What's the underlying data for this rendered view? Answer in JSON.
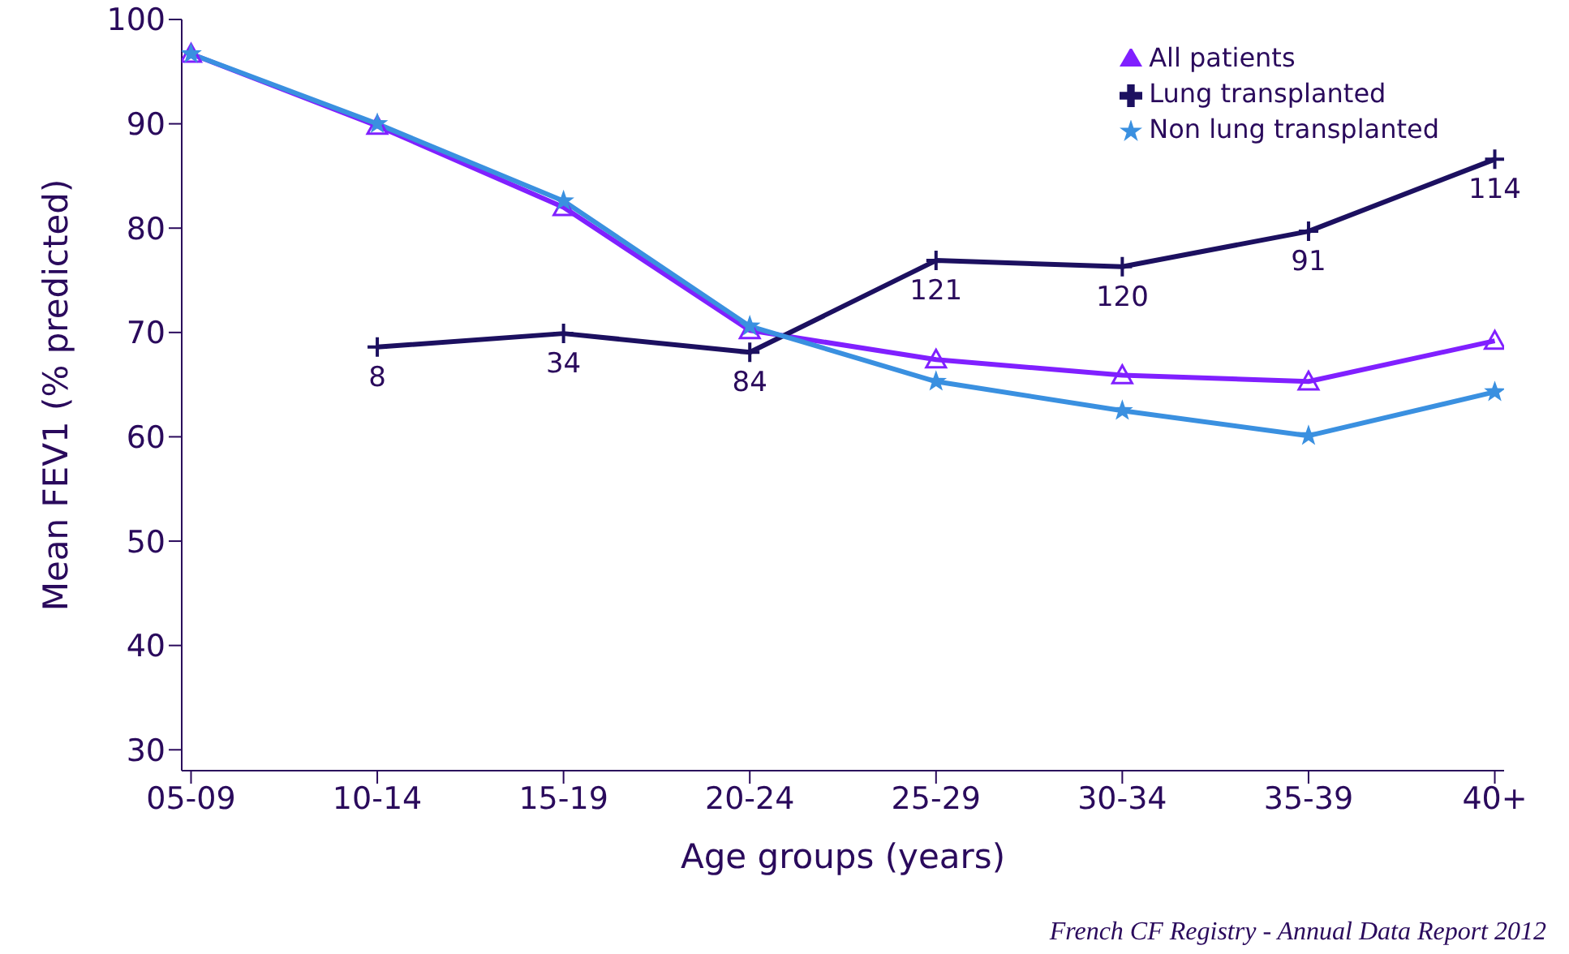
{
  "chart_data": {
    "type": "line",
    "xlabel": "Age groups (years)",
    "ylabel": "Mean FEV1 (% predicted)",
    "categories": [
      "05-09",
      "10-14",
      "15-19",
      "20-24",
      "25-29",
      "30-34",
      "35-39",
      "40+"
    ],
    "series": [
      {
        "name": "All patients",
        "color": "#8020ff",
        "marker": "triangle",
        "values": [
          96.7,
          89.8,
          82.0,
          70.2,
          67.4,
          65.9,
          65.3,
          69.2
        ]
      },
      {
        "name": "Lung transplanted",
        "color": "#1c1060",
        "marker": "cross",
        "values": [
          null,
          68.6,
          69.9,
          68.1,
          76.9,
          76.3,
          79.7,
          86.6
        ]
      },
      {
        "name": "Non lung transplanted",
        "color": "#3a90e0",
        "marker": "star",
        "values": [
          96.7,
          90.0,
          82.6,
          70.6,
          65.3,
          62.5,
          60.1,
          64.3
        ]
      }
    ],
    "ylim": [
      28,
      100
    ],
    "yticks": [
      30,
      40,
      50,
      60,
      70,
      80,
      90,
      100
    ],
    "grid": false,
    "legend": "top right",
    "line_style": "solid",
    "annotations": [
      {
        "text": "8",
        "x": "10-14",
        "y": 68.6
      },
      {
        "text": "34",
        "x": "15-19",
        "y": 69.9
      },
      {
        "text": "84",
        "x": "20-24",
        "y": 68.1
      },
      {
        "text": "121",
        "x": "25-29",
        "y": 76.9
      },
      {
        "text": "120",
        "x": "30-34",
        "y": 76.3
      },
      {
        "text": "91",
        "x": "35-39",
        "y": 79.7
      },
      {
        "text": "114",
        "x": "40+",
        "y": 86.6
      },
      "French CF Registry - Annual Data Report 2012"
    ]
  }
}
